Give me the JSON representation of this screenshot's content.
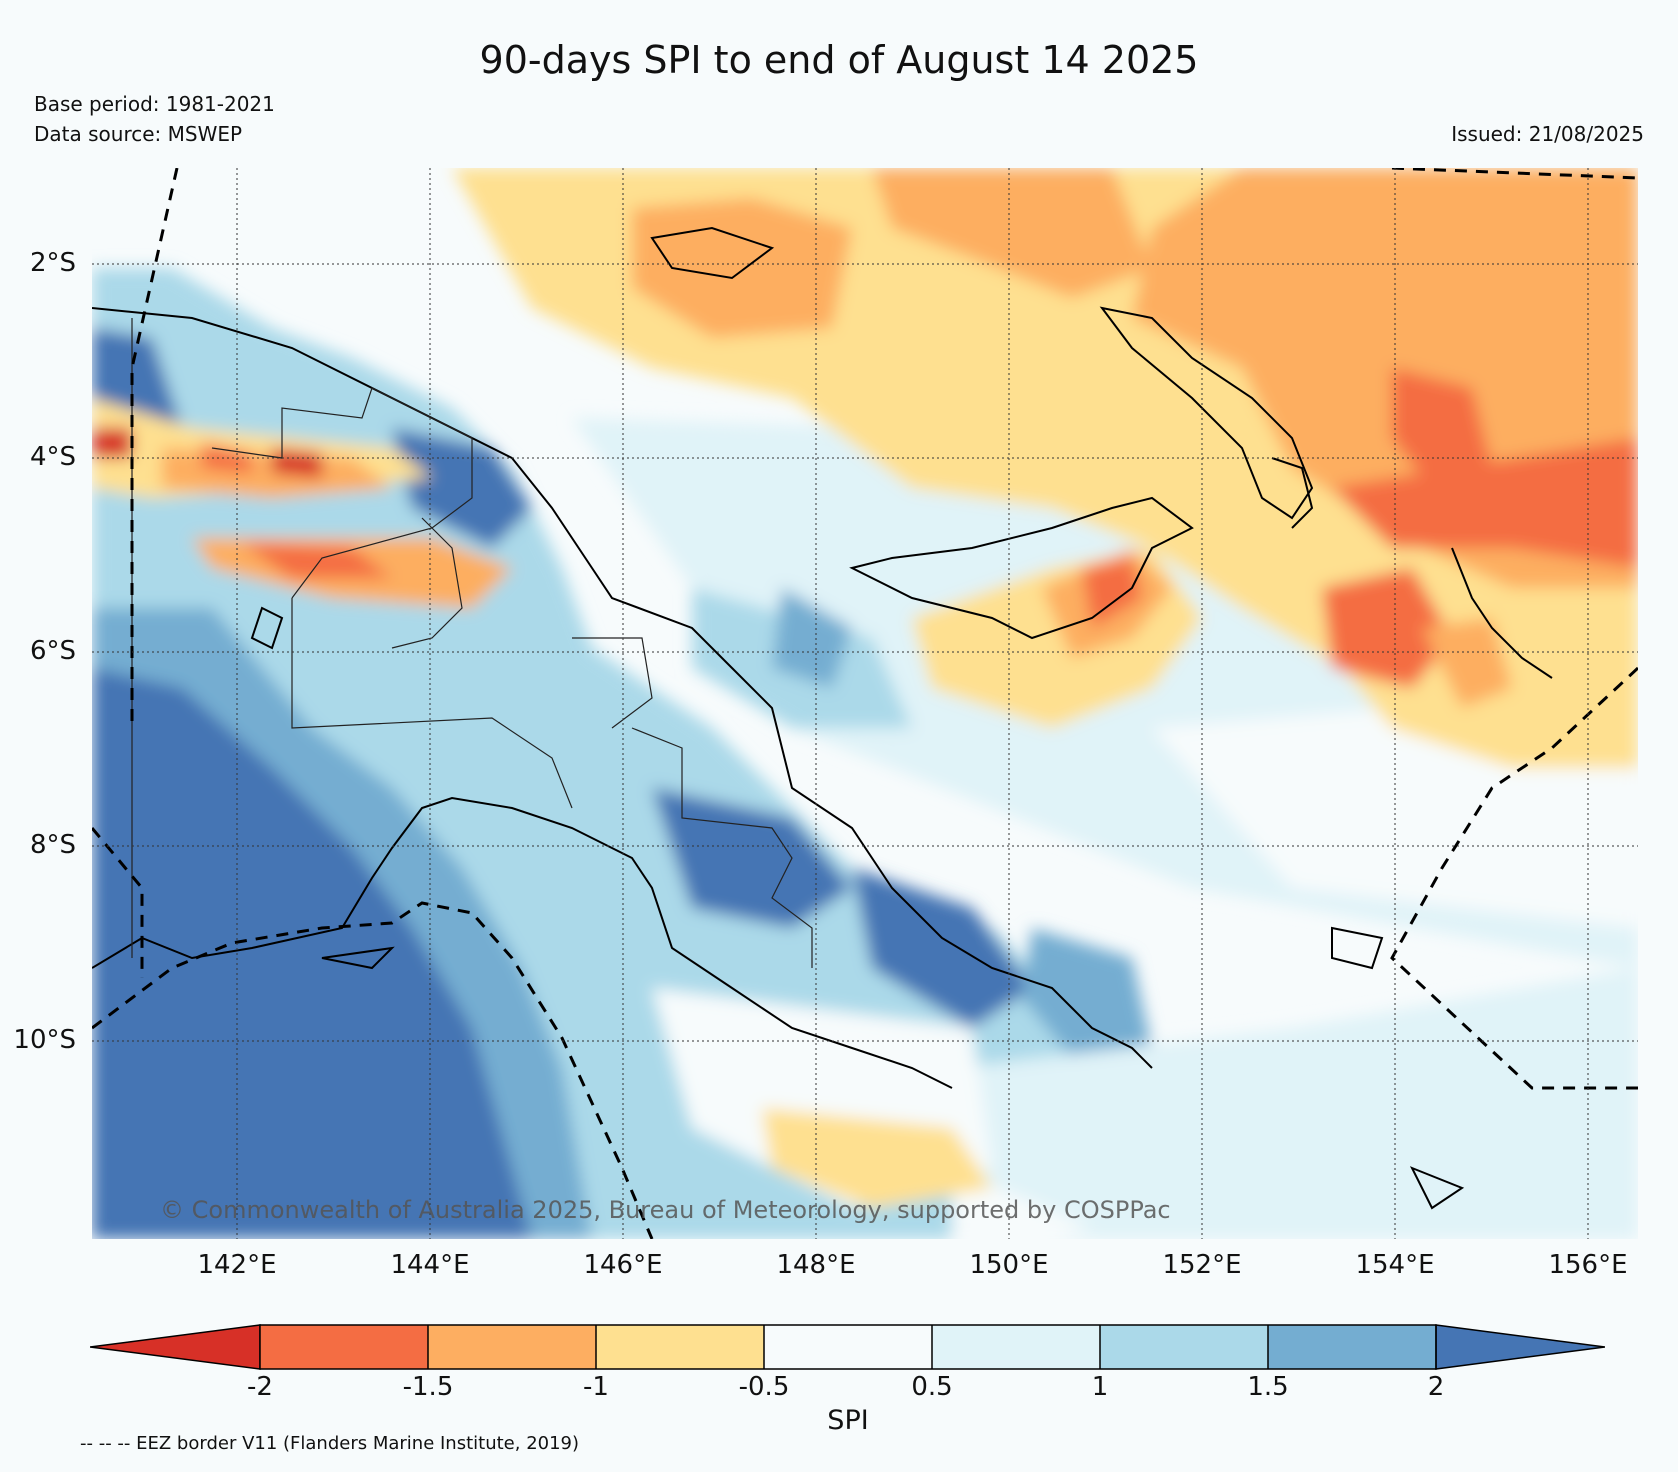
{
  "title": "90-days SPI to end of August 14 2025",
  "base_period": "Base period: 1981-2021",
  "data_source": "Data source: MSWEP",
  "issued": "Issued: 21/08/2025",
  "copyright": "© Commonwealth of Australia 2025, Bureau of Meteorology, supported by COSPPac",
  "lat_labels": [
    "2°S",
    "4°S",
    "6°S",
    "8°S",
    "10°S"
  ],
  "lon_labels": [
    "142°E",
    "144°E",
    "146°E",
    "148°E",
    "150°E",
    "152°E",
    "154°E",
    "156°E"
  ],
  "colorbar": {
    "title": "SPI",
    "labels": [
      "-2",
      "-1.5",
      "-1",
      "-0.5",
      "0.5",
      "1",
      "1.5",
      "2"
    ],
    "colors": [
      "#d73027",
      "#f46d43",
      "#fdae61",
      "#fee090",
      "#f7fbfc",
      "#e0f3f8",
      "#abd9e9",
      "#74add1",
      "#4575b4"
    ]
  },
  "eez_note": "-- -- -- EEZ border V11 (Flanders Marine Institute, 2019)"
}
